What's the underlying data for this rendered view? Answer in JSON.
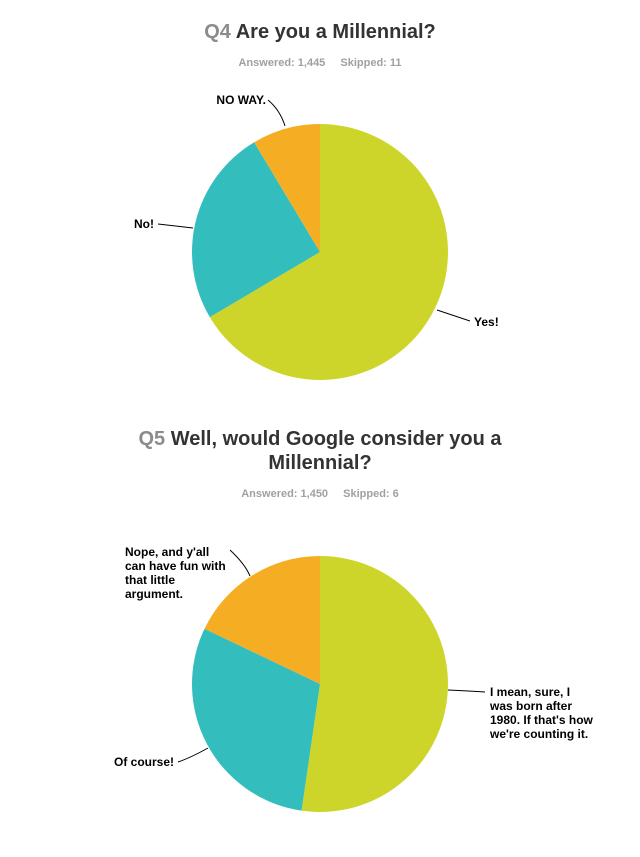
{
  "colors": {
    "green": "#cdd52a",
    "teal": "#33bebd",
    "orange": "#f5ae23"
  },
  "q4": {
    "number": "Q4",
    "title": "Are you a Millennial?",
    "answered": "Answered: 1,445",
    "skipped": "Skipped: 11"
  },
  "q5": {
    "number": "Q5",
    "title_line1": "Well, would Google consider you a",
    "title_line2": "Millennial?",
    "answered": "Answered: 1,450",
    "skipped": "Skipped: 6"
  },
  "chart_data": [
    {
      "type": "pie",
      "title": "Q4 Are you a Millennial?",
      "slices": [
        {
          "label": "Yes!",
          "value": 66.5,
          "color": "#cdd52a"
        },
        {
          "label": "No!",
          "value": 24.9,
          "color": "#33bebd"
        },
        {
          "label": "NO WAY.",
          "value": 8.6,
          "color": "#f5ae23"
        }
      ]
    },
    {
      "type": "pie",
      "title": "Q5 Well, would Google consider you a Millennial?",
      "slices": [
        {
          "label_lines": [
            "I mean, sure, I",
            "was born after",
            "1980. If that's how",
            "we're counting it."
          ],
          "value": 52.3,
          "color": "#cdd52a"
        },
        {
          "label_lines": [
            "Of course!"
          ],
          "value": 29.8,
          "color": "#33bebd"
        },
        {
          "label_lines": [
            "Nope, and y'all",
            "can have fun with",
            "that little",
            "argument."
          ],
          "value": 17.9,
          "color": "#f5ae23"
        }
      ]
    }
  ]
}
